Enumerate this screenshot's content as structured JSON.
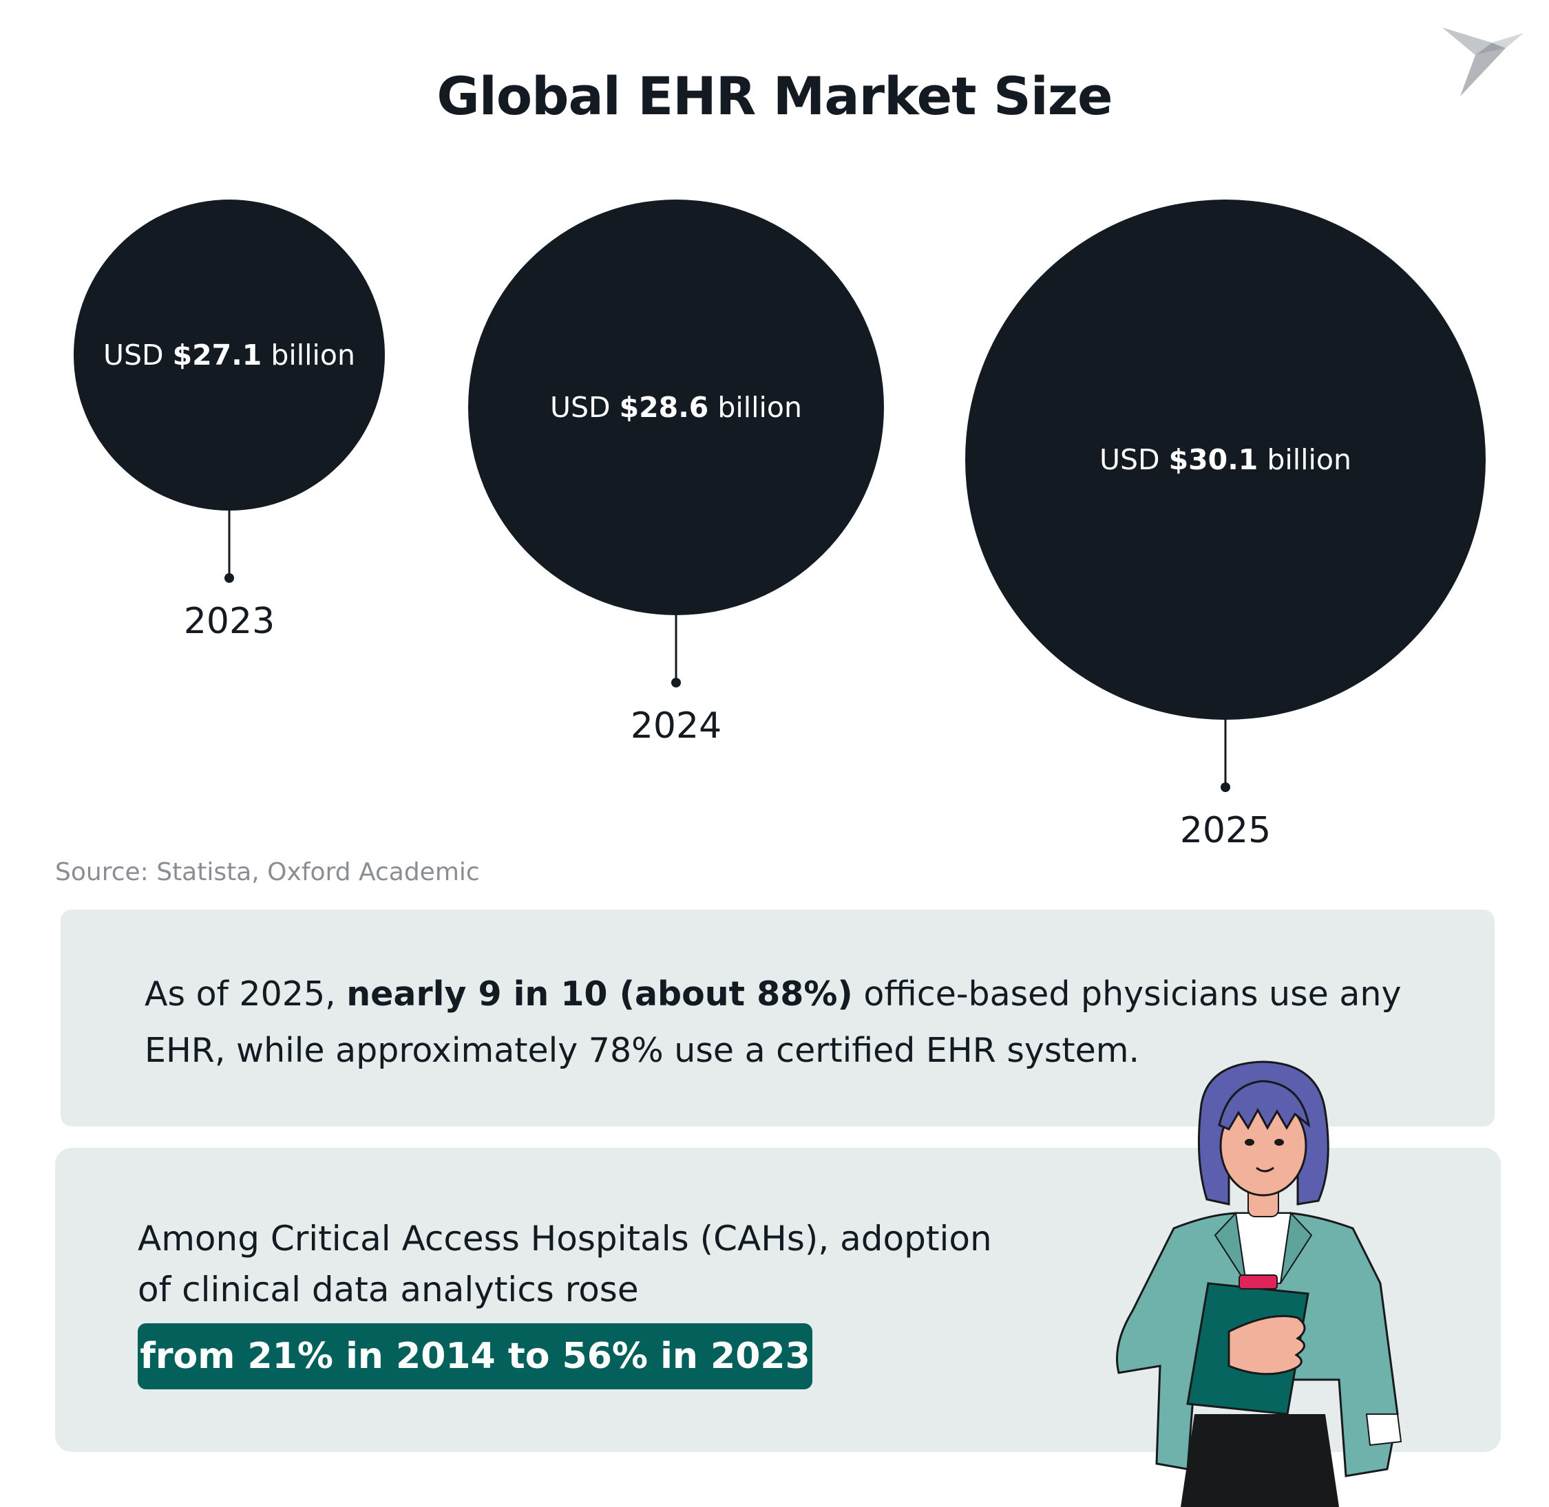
{
  "title": "Global EHR Market Size",
  "source": "Source: Statista, Oxford Academic",
  "chart_data": {
    "type": "bubble",
    "title": "Global EHR Market Size",
    "categories": [
      "2023",
      "2024",
      "2025"
    ],
    "values": [
      27.1,
      28.6,
      30.1
    ],
    "value_prefix": "USD ",
    "value_labels": [
      "$27.1",
      "$28.6",
      "$30.1"
    ],
    "value_suffix": " billion",
    "bubble_color": "#141a21"
  },
  "stat1": {
    "prefix": "As of 2025, ",
    "bold": "nearly 9 in 10 (about 88%)",
    "suffix": " office-based physicians use any EHR, while approximately 78% use a certified EHR system."
  },
  "stat2": {
    "text": "Among Critical Access Hospitals (CAHs), adoption of clinical data analytics rose",
    "highlight": "from 21% in 2014 to 56% in 2023"
  },
  "icons": {
    "logo": "bird-logo-icon",
    "illustration": "woman-with-clipboard"
  },
  "colors": {
    "dark": "#141a21",
    "card_bg": "#e6ecec",
    "accent": "#04605a"
  }
}
